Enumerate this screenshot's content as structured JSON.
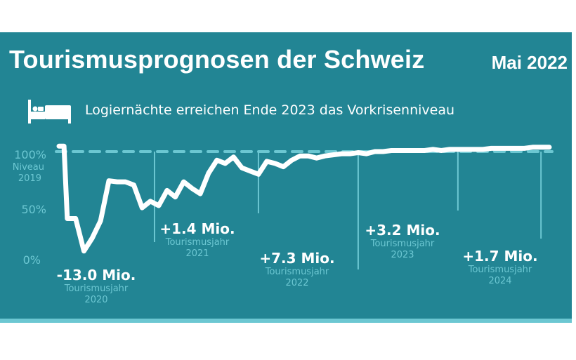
{
  "header": {
    "title": "Tourismusprognosen der Schweiz",
    "date": "Mai 2022",
    "subtitle": "Logiernächte erreichen Ende 2023 das Vorkrisenniveau",
    "icon": "bed-icon"
  },
  "colors": {
    "background": "#228594",
    "accent": "#6cc7d2",
    "line": "#ffffff"
  },
  "chart_data": {
    "type": "line",
    "title": "Tourismusprognosen der Schweiz",
    "subtitle": "Logiernächte erreichen Ende 2023 das Vorkrisenniveau",
    "ylabel": "% Niveau 2019",
    "ylim": [
      0,
      100
    ],
    "y_ticks": [
      {
        "value": 100,
        "label": "100%",
        "sublabel": [
          "Niveau",
          "2019"
        ]
      },
      {
        "value": 50,
        "label": "50%"
      },
      {
        "value": 0,
        "label": "0%"
      }
    ],
    "reference_line": {
      "value": 100,
      "style": "dashed",
      "label": "Niveau 2019"
    },
    "x_range": [
      "2020-01",
      "2024-12"
    ],
    "series": [
      {
        "name": "Logiernächte (% von 2019)",
        "x": [
          0,
          0.6,
          1,
          2,
          3,
          4,
          5,
          6,
          7,
          8,
          9,
          10,
          11,
          12,
          13,
          14,
          15,
          16,
          17,
          18,
          19,
          20,
          21,
          22,
          23,
          24,
          25,
          26,
          27,
          28,
          29,
          30,
          31,
          32,
          33,
          34,
          35,
          36,
          37,
          38,
          39,
          40,
          41,
          42,
          43,
          44,
          45,
          46,
          47,
          48,
          49,
          50,
          51,
          52,
          53,
          54,
          55,
          56,
          57,
          58,
          59
        ],
        "values": [
          105,
          105,
          38,
          38,
          8,
          20,
          36,
          73,
          72,
          72,
          69,
          48,
          54,
          50,
          64,
          58,
          72,
          66,
          61,
          80,
          92,
          89,
          95,
          85,
          82,
          79,
          91,
          89,
          86,
          92,
          96,
          96,
          94,
          96,
          97,
          98,
          98,
          99,
          98,
          100,
          100,
          101,
          101,
          101,
          101,
          101,
          102,
          101,
          102,
          102,
          102,
          102,
          102,
          103,
          103,
          103,
          103,
          103,
          104,
          104,
          104
        ]
      }
    ],
    "annotations": [
      {
        "year": "2020",
        "value": "-13.0 Mio.",
        "label": "Tourismusjahr"
      },
      {
        "year": "2021",
        "value": "+1.4 Mio.",
        "label": "Tourismusjahr"
      },
      {
        "year": "2022",
        "value": "+7.3 Mio.",
        "label": "Tourismusjahr"
      },
      {
        "year": "2023",
        "value": "+3.2 Mio.",
        "label": "Tourismusjahr"
      },
      {
        "year": "2024",
        "value": "+1.7 Mio.",
        "label": "Tourismusjahr"
      }
    ],
    "year_dividers": [
      "2021",
      "2022",
      "2023",
      "2024",
      "2025"
    ],
    "grid": false,
    "legend": "none"
  }
}
